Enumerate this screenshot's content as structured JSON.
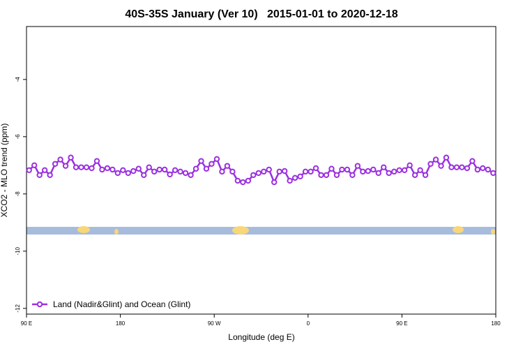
{
  "chart_data": {
    "type": "line",
    "title": "40S-35S January (Ver 10)   2015-01-01 to 2020-12-18",
    "x_label": "Longitude (deg E)",
    "y_label": "XCO2 - MLO trend (ppm)",
    "xlim": [
      90,
      540
    ],
    "xticks": [
      {
        "value": 90,
        "label": "90 E"
      },
      {
        "value": 180,
        "label": "180"
      },
      {
        "value": 270,
        "label": "90 W"
      },
      {
        "value": 360,
        "label": "0"
      },
      {
        "value": 450,
        "label": "90 E"
      },
      {
        "value": 540,
        "label": "180"
      }
    ],
    "ylim": [
      -12.2,
      -2.15
    ],
    "yticks": [
      -12,
      -10,
      -8,
      -6,
      -4
    ],
    "legend": "bottom-left",
    "x": [
      92.5,
      97.5,
      102.5,
      107.5,
      112.5,
      117.5,
      122.5,
      127.5,
      132.5,
      137.5,
      142.5,
      147.5,
      152.5,
      157.5,
      162.5,
      167.5,
      172.5,
      177.5,
      182.5,
      187.5,
      192.5,
      197.5,
      202.5,
      207.5,
      212.5,
      217.5,
      222.5,
      227.5,
      232.5,
      237.5,
      242.5,
      247.5,
      252.5,
      257.5,
      262.5,
      267.5,
      272.5,
      277.5,
      282.5,
      287.5,
      292.5,
      297.5,
      302.5,
      307.5,
      312.5,
      317.5,
      322.5,
      327.5,
      332.5,
      337.5,
      342.5,
      347.5,
      352.5,
      357.5,
      362.5,
      367.5,
      372.5,
      377.5,
      382.5,
      387.5,
      392.5,
      397.5,
      402.5,
      407.5,
      412.5,
      417.5,
      422.5,
      427.5,
      432.5,
      437.5,
      442.5,
      447.5,
      452.5,
      457.5,
      462.5,
      467.5,
      472.5,
      477.5,
      482.5,
      487.5,
      492.5,
      497.5,
      502.5,
      507.5,
      512.5,
      517.5,
      522.5,
      527.5,
      532.5,
      537.5
    ],
    "series": [
      {
        "name": "Land (Nadir&Glint) and Ocean (Glint)",
        "color": "#9b30e0",
        "values": [
          -7.17,
          -7.0,
          -7.34,
          -7.17,
          -7.34,
          -6.95,
          -6.8,
          -7.02,
          -6.73,
          -7.07,
          -7.07,
          -7.07,
          -7.1,
          -6.85,
          -7.15,
          -7.1,
          -7.15,
          -7.27,
          -7.17,
          -7.27,
          -7.2,
          -7.12,
          -7.34,
          -7.07,
          -7.22,
          -7.15,
          -7.15,
          -7.32,
          -7.17,
          -7.22,
          -7.27,
          -7.34,
          -7.12,
          -6.85,
          -7.12,
          -6.95,
          -6.78,
          -7.22,
          -7.02,
          -7.22,
          -7.54,
          -7.59,
          -7.54,
          -7.34,
          -7.27,
          -7.22,
          -7.15,
          -7.59,
          -7.22,
          -7.2,
          -7.54,
          -7.44,
          -7.39,
          -7.22,
          -7.22,
          -7.1,
          -7.34,
          -7.34,
          -7.12,
          -7.34,
          -7.15,
          -7.15,
          -7.34,
          -7.02,
          -7.22,
          -7.2,
          -7.15,
          -7.27,
          -7.07,
          -7.27,
          -7.22,
          -7.17,
          -7.17,
          -7.0,
          -7.34,
          -7.17,
          -7.34,
          -6.95,
          -6.8,
          -7.02,
          -6.73,
          -7.07,
          -7.07,
          -7.07,
          -7.1,
          -6.85,
          -7.15,
          -7.1,
          -7.15,
          -7.27
        ]
      }
    ]
  }
}
